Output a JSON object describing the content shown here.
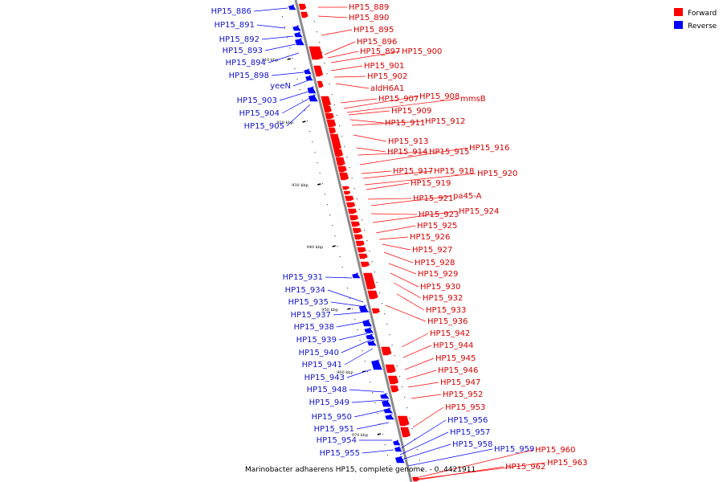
{
  "caption": "Marinobacter adhaerens HP15, complete genome. - 0..4421911",
  "legend": [
    {
      "label": "Forward",
      "color": "#ff0000"
    },
    {
      "label": "Reverse",
      "color": "#0000ff"
    }
  ],
  "colors": {
    "forward": "#ff0000",
    "reverse": "#0000ff",
    "label_forward": "#d40000",
    "label_reverse": "#1414c8",
    "backbone": "#8c8c8c"
  },
  "ticks": [
    "910 kbp",
    "920 kbp",
    "930 kbp",
    "940 kbp",
    "950 kbp",
    "960 kbp",
    "970 kbp"
  ],
  "forward_genes": [
    "HP15_889",
    "HP15_890",
    "HP15_895",
    "HP15_896",
    "HP15_897",
    "HP15_900",
    "HP15_901",
    "HP15_902",
    "aldH6A1",
    "HP15_907",
    "HP15_908",
    "mmsB",
    "HP15_909",
    "HP15_911",
    "HP15_912",
    "HP15_913",
    "HP15_914",
    "HP15_915",
    "HP15_916",
    "HP15_917",
    "HP15_918",
    "HP15_920",
    "HP15_919",
    "HP15_921",
    "pa45-A",
    "HP15_923",
    "HP15_924",
    "HP15_925",
    "HP15_926",
    "HP15_927",
    "HP15_928",
    "HP15_929",
    "HP15_930",
    "HP15_932",
    "HP15_933",
    "HP15_936",
    "HP15_942",
    "HP15_944",
    "HP15_945",
    "HP15_946",
    "HP15_947",
    "HP15_952",
    "HP15_953",
    "HP15_960",
    "HP15_963",
    "HP15_962"
  ],
  "reverse_genes": [
    "HP15_886",
    "HP15_891",
    "HP15_892",
    "HP15_893",
    "HP15_894",
    "HP15_898",
    "yeeN",
    "HP15_903",
    "HP15_904",
    "HP15_905",
    "HP15_931",
    "HP15_934",
    "HP15_935",
    "HP15_937",
    "HP15_938",
    "HP15_939",
    "HP15_940",
    "HP15_941",
    "HP15_943",
    "HP15_948",
    "HP15_949",
    "HP15_950",
    "HP15_951",
    "HP15_954",
    "HP15_955",
    "HP15_956",
    "HP15_957",
    "HP15_958",
    "HP15_959"
  ]
}
